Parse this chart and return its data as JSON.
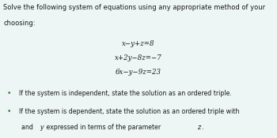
{
  "bg_color": "#eef5f5",
  "text_color": "#1a1a1a",
  "bullet_color": "#2e7d32",
  "title_lines": [
    "Solve the following system of equations using any appropriate method of your",
    "choosing:"
  ],
  "equations": [
    "x−y+z=8",
    "x+2y−8z=−7",
    "6x−y−9z=23"
  ],
  "eq_fontsize": 6.2,
  "title_fontsize": 6.0,
  "bullet_fontsize": 5.7,
  "bullet_char": "•"
}
